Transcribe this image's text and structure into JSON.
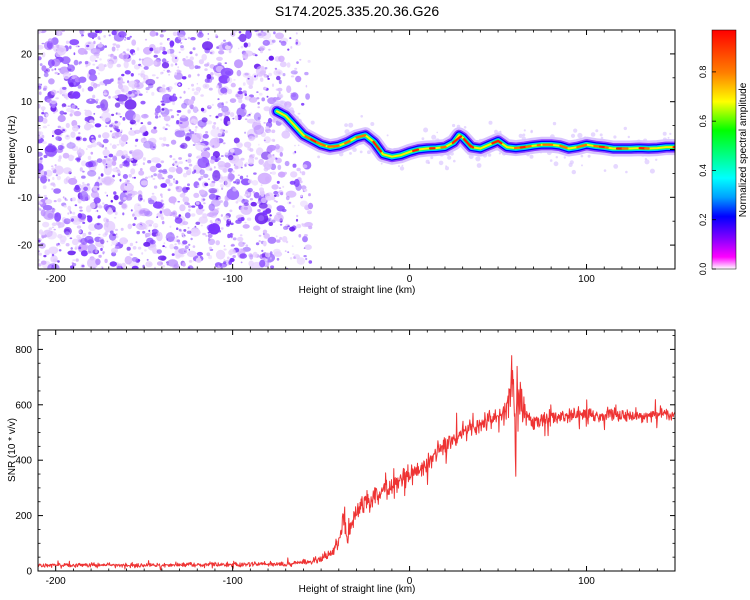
{
  "title": "S174.2025.335.20.36.G26",
  "chart_data": [
    {
      "type": "heatmap",
      "xlabel": "Height of straight line (km)",
      "ylabel": "Frequency (Hz)",
      "xlim": [
        -210,
        150
      ],
      "ylim": [
        -25,
        25
      ],
      "xticks": [
        -200,
        -100,
        0,
        100
      ],
      "yticks": [
        -20,
        -10,
        0,
        10,
        20
      ],
      "colorbar": {
        "label": "Normalized spectral amplitude",
        "range": [
          0,
          0.97
        ],
        "ticks": [
          0.0,
          0.2,
          0.4,
          0.6,
          0.8
        ],
        "colors": [
          "#ffffff",
          "#ff00ff",
          "#8000ff",
          "#0000ff",
          "#00a0ff",
          "#00ffff",
          "#00ff80",
          "#00ff00",
          "#ffff00",
          "#ff8000",
          "#ff0000"
        ]
      },
      "noise_region_km": [
        -210,
        -62
      ],
      "ridge": {
        "name": "frequency ridge",
        "x": [
          -75,
          -70,
          -65,
          -60,
          -55,
          -50,
          -45,
          -40,
          -35,
          -30,
          -25,
          -20,
          -15,
          -10,
          -5,
          0,
          5,
          10,
          15,
          20,
          25,
          28,
          30,
          35,
          40,
          45,
          50,
          55,
          60,
          65,
          70,
          75,
          80,
          85,
          90,
          95,
          100,
          105,
          110,
          115,
          120,
          125,
          130,
          135,
          140,
          145,
          150
        ],
        "y": [
          8,
          7,
          5,
          3,
          2,
          1,
          0.5,
          0.8,
          1.5,
          2.5,
          3,
          1.5,
          -1,
          -1.5,
          -1.2,
          -0.5,
          0,
          0.2,
          0.3,
          0.5,
          1.5,
          3,
          2.5,
          0.5,
          0.2,
          1,
          1.8,
          0.5,
          0.3,
          0.5,
          0.8,
          1,
          1,
          0.8,
          0.2,
          0.5,
          1,
          0.7,
          0.5,
          0.2,
          0.2,
          0.2,
          0.3,
          0.2,
          0.3,
          0.5,
          0.5
        ]
      }
    },
    {
      "type": "line",
      "xlabel": "Height of straight line (km)",
      "ylabel": "SNR (10 * v/v)",
      "xlim": [
        -210,
        150
      ],
      "ylim": [
        0,
        870
      ],
      "xticks": [
        -200,
        -100,
        0,
        100
      ],
      "yticks": [
        0,
        200,
        400,
        600,
        800
      ],
      "series": [
        {
          "name": "SNR",
          "color": "#ee3333",
          "x": [
            -210,
            -180,
            -150,
            -120,
            -90,
            -70,
            -55,
            -45,
            -40,
            -37,
            -35,
            -33,
            -30,
            -25,
            -20,
            -10,
            0,
            10,
            20,
            30,
            40,
            45,
            50,
            55,
            58,
            60,
            62,
            65,
            70,
            80,
            90,
            100,
            110,
            120,
            130,
            140,
            150
          ],
          "y": [
            20,
            22,
            20,
            22,
            25,
            25,
            35,
            60,
            100,
            200,
            120,
            170,
            210,
            240,
            270,
            300,
            340,
            390,
            450,
            500,
            530,
            550,
            560,
            580,
            700,
            500,
            640,
            560,
            540,
            550,
            560,
            560,
            565,
            560,
            560,
            565,
            570
          ],
          "spread": [
            12,
            12,
            12,
            12,
            12,
            12,
            15,
            30,
            40,
            60,
            60,
            60,
            60,
            55,
            55,
            55,
            55,
            50,
            50,
            45,
            45,
            45,
            50,
            60,
            160,
            220,
            150,
            60,
            45,
            40,
            40,
            40,
            40,
            40,
            40,
            40,
            40
          ]
        }
      ]
    }
  ]
}
